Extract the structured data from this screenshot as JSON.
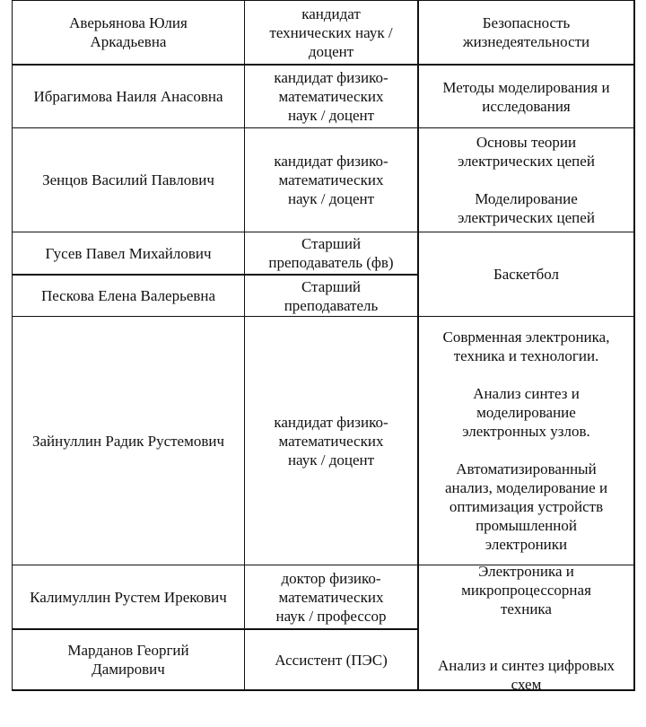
{
  "rows": [
    {
      "name": "Аверьянова Юлия\nАркадьевна",
      "degree": "кандидат\nтехнических наук /\nдоцент"
    },
    {
      "name": "Ибрагимова Наиля Анасовна",
      "degree": "кандидат физико-\nматематических\nнаук / доцент"
    },
    {
      "name": "Зенцов Василий Павлович",
      "degree": "кандидат физико-\nматематических\nнаук / доцент"
    },
    {
      "name": "Гусев Павел Михайлович",
      "degree": "Старший\nпреподаватель (фв)"
    },
    {
      "name": "Пескова Елена Валерьевна",
      "degree": "Старший\nпреподаватель"
    },
    {
      "name": "Зайнуллин Радик Рустемович",
      "degree": "кандидат физико-\nматематических\nнаук / доцент"
    },
    {
      "name": "Калимуллин Рустем Ирекович",
      "degree": "доктор физико-\nматематических\nнаук / профессор"
    },
    {
      "name": "Марданов Георгий\nДамирович",
      "degree": "Ассистент (ПЭС)"
    }
  ],
  "subjects": [
    "Безопасность\nжизнедеятельности",
    "Методы моделирования и\nисследования",
    "Основы теории\nэлектрических цепей\n\nМоделирование\nэлектрических цепей",
    "Баскетбол",
    "Соврменная электроника,\nтехника и технологии.\n\nАнализ синтез  и\nмоделирование\nэлектронных узлов.\n\nАвтоматизированный\nанализ, моделирование и\nоптимизация устройств\nпромышленной\nэлектроники",
    "Электроника и\nмикропроцессорная\nтехника\n\n\nАнализ и синтез цифровых\nсхем"
  ]
}
